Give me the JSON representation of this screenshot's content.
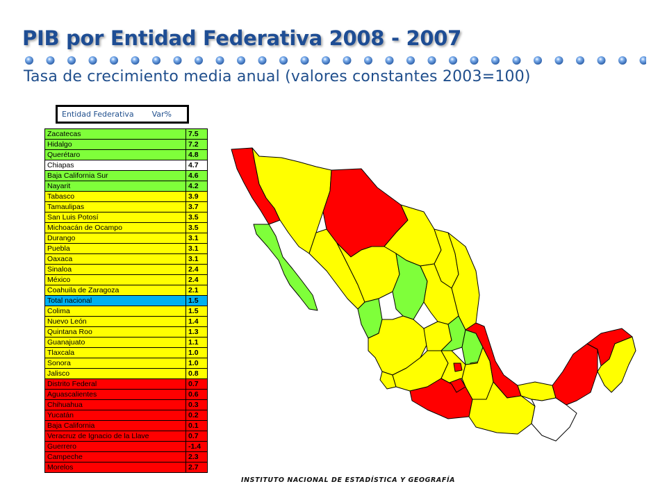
{
  "title": "PIB por Entidad Federativa 2008 - 2007",
  "subtitle": "Tasa de crecimiento media anual (valores constantes 2003=100)",
  "table_header": {
    "col1": "Entidad Federativa",
    "col2": "Var%"
  },
  "rows": [
    {
      "name": "Zacatecas",
      "value": "7.5",
      "class": "green"
    },
    {
      "name": "Hidalgo",
      "value": "7.2",
      "class": "green"
    },
    {
      "name": "Querétaro",
      "value": "4.8",
      "class": "green"
    },
    {
      "name": "Chiapas",
      "value": "4.7",
      "class": "white"
    },
    {
      "name": "Baja California Sur",
      "value": "4.6",
      "class": "green"
    },
    {
      "name": "Nayarit",
      "value": "4.2",
      "class": "green"
    },
    {
      "name": "Tabasco",
      "value": "3.9",
      "class": "yellow"
    },
    {
      "name": "Tamaulipas",
      "value": "3.7",
      "class": "yellow"
    },
    {
      "name": "San Luis Potosí",
      "value": "3.5",
      "class": "yellow"
    },
    {
      "name": "Michoacán de Ocampo",
      "value": "3.5",
      "class": "yellow"
    },
    {
      "name": "Durango",
      "value": "3.1",
      "class": "yellow"
    },
    {
      "name": "Puebla",
      "value": "3.1",
      "class": "yellow"
    },
    {
      "name": "Oaxaca",
      "value": "3.1",
      "class": "yellow"
    },
    {
      "name": "Sinaloa",
      "value": "2.4",
      "class": "yellow"
    },
    {
      "name": "México",
      "value": "2.4",
      "class": "yellow"
    },
    {
      "name": "Coahuila de Zaragoza",
      "value": "2.1",
      "class": "yellow"
    },
    {
      "name": "Total nacional",
      "value": "1.5",
      "class": "blue"
    },
    {
      "name": "Colima",
      "value": "1.5",
      "class": "yellow"
    },
    {
      "name": "Nuevo León",
      "value": "1.4",
      "class": "yellow"
    },
    {
      "name": "Quintana Roo",
      "value": "1.3",
      "class": "yellow"
    },
    {
      "name": "Guanajuato",
      "value": "1.1",
      "class": "yellow"
    },
    {
      "name": "Tlaxcala",
      "value": "1.0",
      "class": "yellow"
    },
    {
      "name": "Sonora",
      "value": "1.0",
      "class": "yellow"
    },
    {
      "name": "Jalisco",
      "value": "0.8",
      "class": "yellow"
    },
    {
      "name": "Distrito Federal",
      "value": "0.7",
      "class": "red"
    },
    {
      "name": "Aguascalientes",
      "value": "0.6",
      "class": "red"
    },
    {
      "name": "Chihuahua",
      "value": "0.3",
      "class": "red"
    },
    {
      "name": "Yucatán",
      "value": "0.2",
      "class": "red"
    },
    {
      "name": "Baja California",
      "value": "0.1",
      "class": "red"
    },
    {
      "name": "Veracruz de Ignacio de la Llave",
      "value": "0.7",
      "class": "red"
    },
    {
      "name": "Guerrero",
      "value": "-1.4",
      "class": "red"
    },
    {
      "name": "Campeche",
      "value": "2.3",
      "class": "red"
    },
    {
      "name": "Morelos",
      "value": "2.7",
      "class": "red"
    }
  ],
  "map": {
    "colors": {
      "green": "#7fff3a",
      "yellow": "#ffff00",
      "red": "#ff0000",
      "white": "#ffffff",
      "border": "#000000"
    }
  },
  "footer": "INSTITUTO NACIONAL DE ESTADÍSTICA Y GEOGRAFÍA",
  "colors": {
    "title": "#1e4d94",
    "dots": "#5b8fd6",
    "total_row": "#00b0f0"
  }
}
